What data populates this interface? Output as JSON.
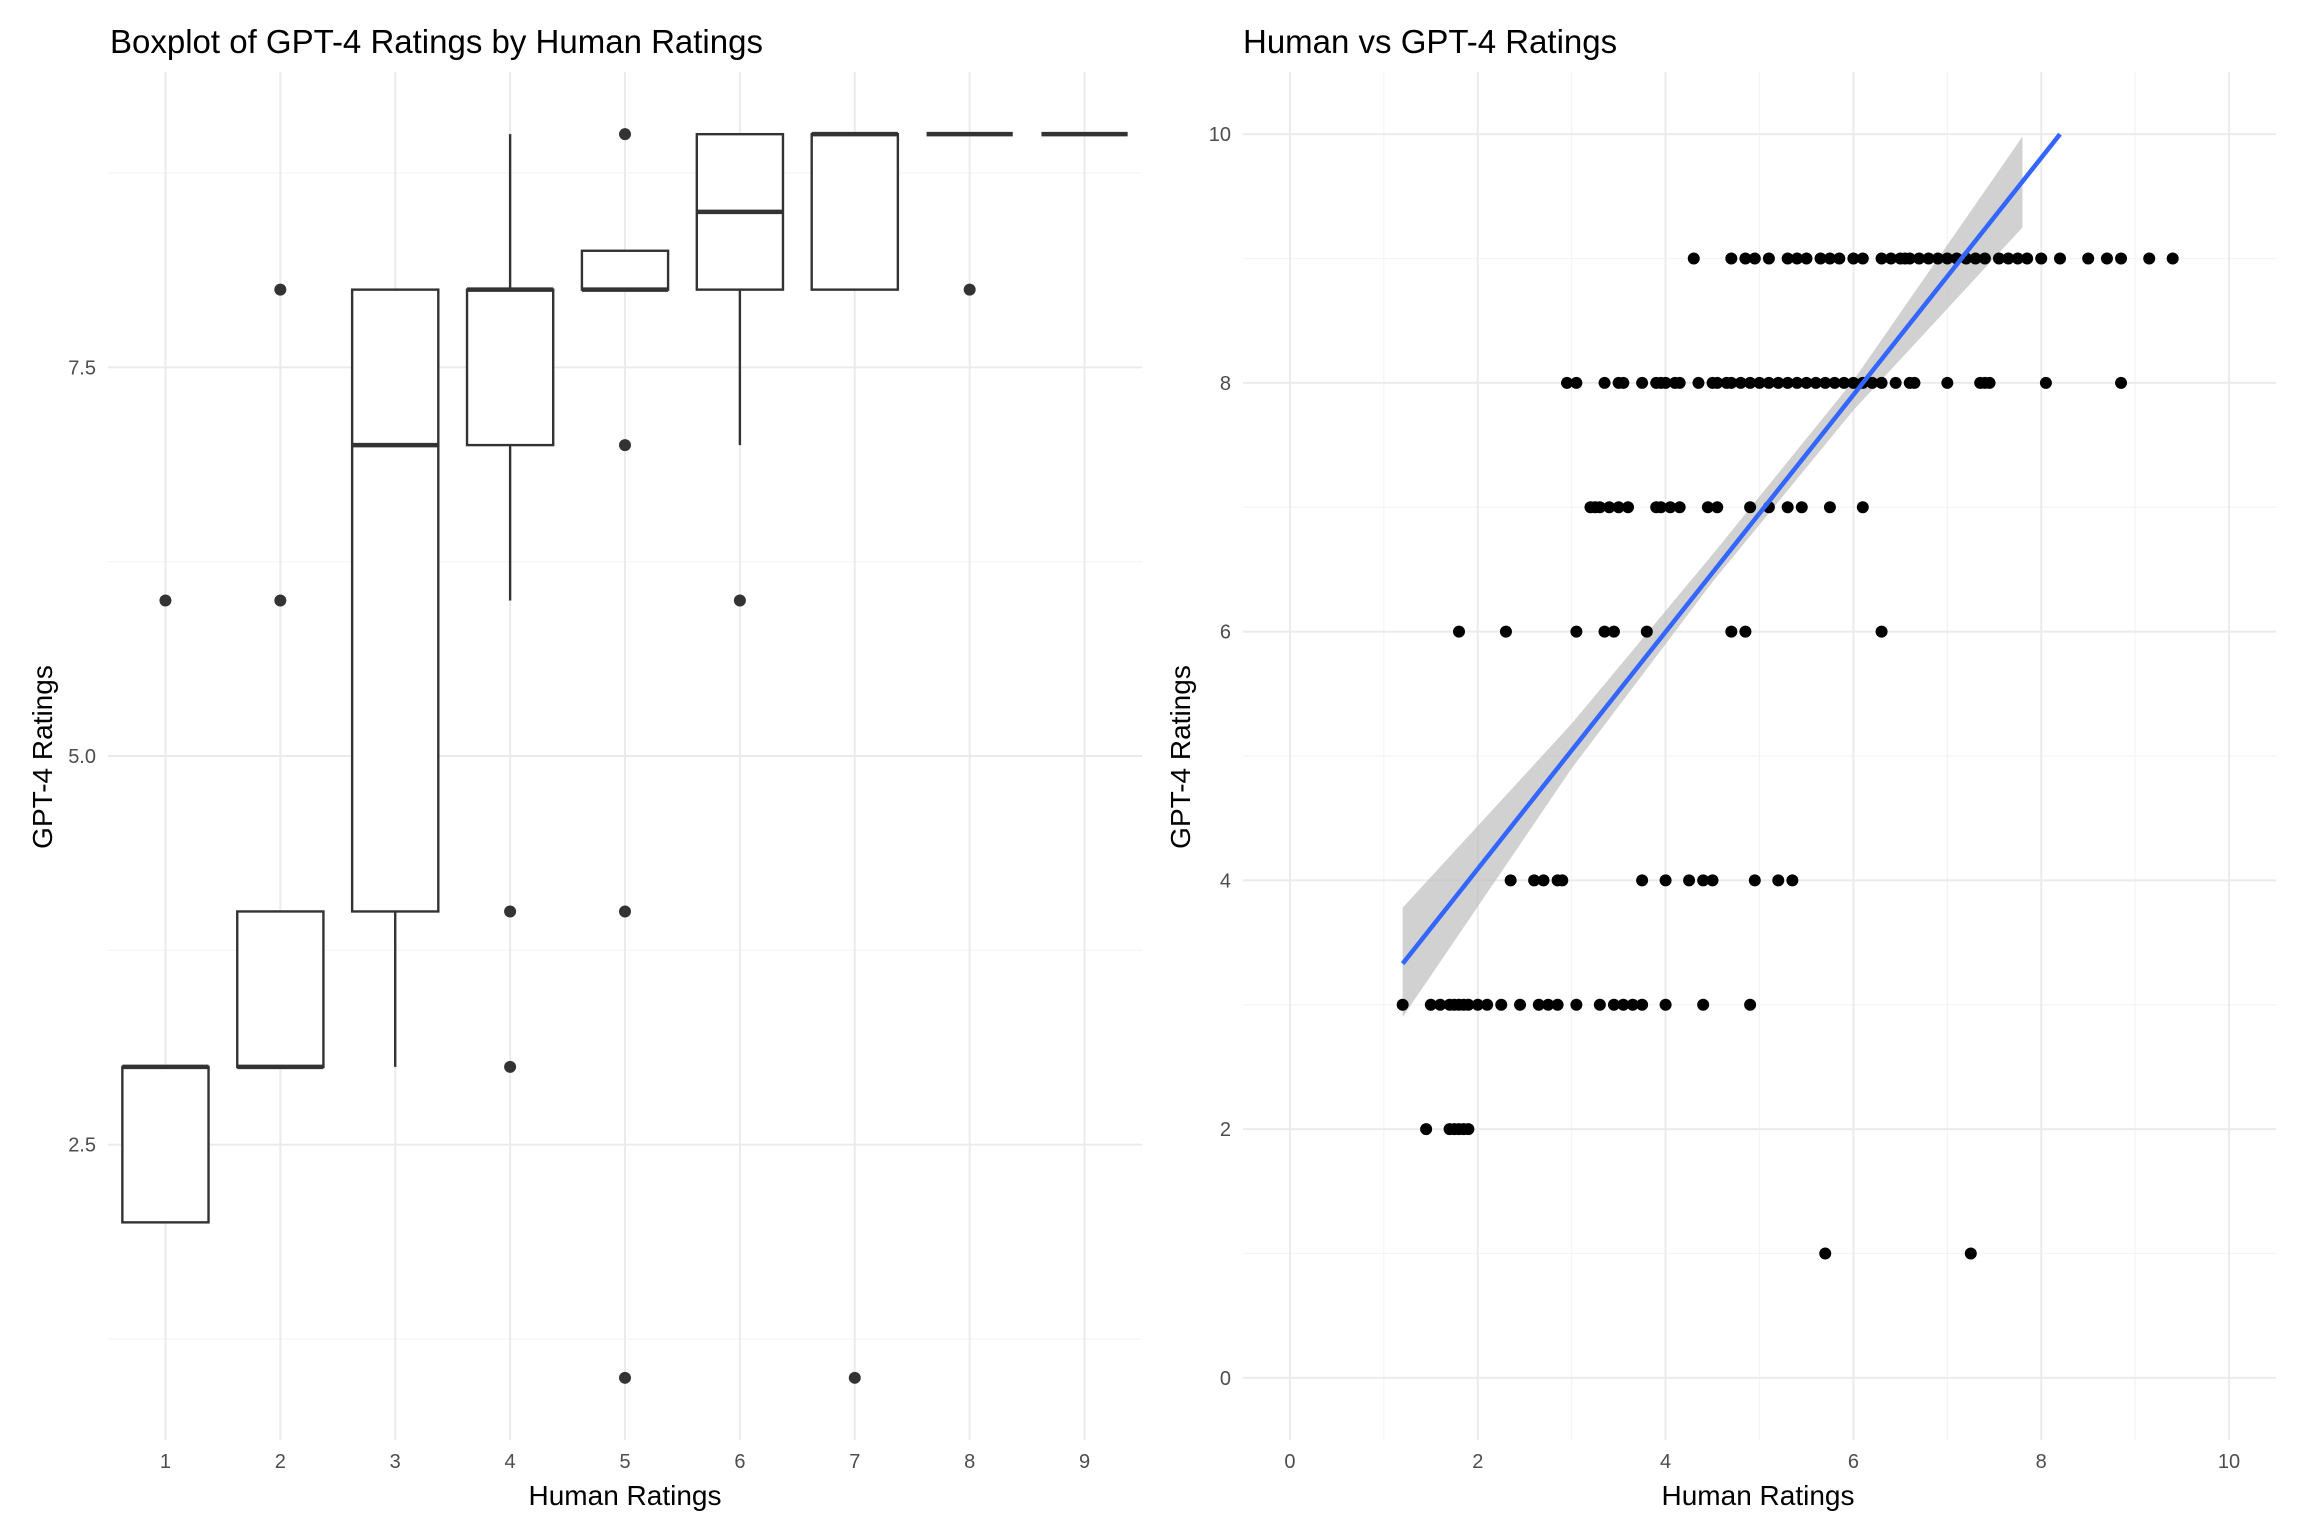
{
  "chart_data": [
    {
      "type": "boxplot",
      "title": "Boxplot of GPT-4 Ratings by Human Ratings",
      "xlabel": "Human Ratings",
      "ylabel": "GPT-4 Ratings",
      "categories": [
        "1",
        "2",
        "3",
        "4",
        "5",
        "6",
        "7",
        "8",
        "9"
      ],
      "yticks": [
        2.5,
        5.0,
        7.5
      ],
      "ytick_labels": [
        "2.5",
        "5.0",
        "7.5"
      ],
      "ylim": [
        0.6,
        9.4
      ],
      "grid": true,
      "boxes": [
        {
          "x": "1",
          "lower_whisker": 2,
          "q1": 2,
          "median": 3,
          "q3": 3,
          "upper_whisker": 3,
          "outliers": [
            6
          ]
        },
        {
          "x": "2",
          "lower_whisker": 3,
          "q1": 3,
          "median": 3,
          "q3": 4,
          "upper_whisker": 4,
          "outliers": [
            6,
            8
          ]
        },
        {
          "x": "3",
          "lower_whisker": 3,
          "q1": 4,
          "median": 7,
          "q3": 8,
          "upper_whisker": 8,
          "outliers": []
        },
        {
          "x": "4",
          "lower_whisker": 6,
          "q1": 7,
          "median": 8,
          "q3": 8,
          "upper_whisker": 9,
          "outliers": [
            4,
            3
          ]
        },
        {
          "x": "5",
          "lower_whisker": 8,
          "q1": 8,
          "median": 8,
          "q3": 8.25,
          "upper_whisker": 8.25,
          "outliers": [
            9,
            7,
            4,
            1
          ]
        },
        {
          "x": "6",
          "lower_whisker": 7,
          "q1": 8,
          "median": 8.5,
          "q3": 9,
          "upper_whisker": 9,
          "outliers": [
            6
          ]
        },
        {
          "x": "7",
          "lower_whisker": 8,
          "q1": 8,
          "median": 9,
          "q3": 9,
          "upper_whisker": 9,
          "outliers": [
            1
          ]
        },
        {
          "x": "8",
          "lower_whisker": 9,
          "q1": 9,
          "median": 9,
          "q3": 9,
          "upper_whisker": 9,
          "outliers": [
            8
          ]
        },
        {
          "x": "9",
          "lower_whisker": 9,
          "q1": 9,
          "median": 9,
          "q3": 9,
          "upper_whisker": 9,
          "outliers": []
        }
      ]
    },
    {
      "type": "scatter",
      "title": "Human vs GPT-4 Ratings",
      "xlabel": "Human Ratings",
      "ylabel": "GPT-4 Ratings",
      "xlim": [
        -0.5,
        10.5
      ],
      "ylim": [
        -0.5,
        10.5
      ],
      "xticks": [
        0,
        2,
        4,
        6,
        8,
        10
      ],
      "yticks": [
        0,
        2,
        4,
        6,
        8,
        10
      ],
      "grid": true,
      "point_color": "#000000",
      "trend": {
        "color": "#3366ff",
        "band_color": "#bdbdbd",
        "x1": 1.2,
        "y1": 3.33,
        "x2": 8.2,
        "y2": 10.0,
        "band_points": [
          {
            "x": 1.2,
            "lo": 2.9,
            "hi": 3.78
          },
          {
            "x": 3.0,
            "lo": 4.9,
            "hi": 5.26
          },
          {
            "x": 4.5,
            "lo": 6.4,
            "hi": 6.62
          },
          {
            "x": 6.0,
            "lo": 7.78,
            "hi": 8.02
          },
          {
            "x": 7.8,
            "lo": 9.25,
            "hi": 9.98
          }
        ]
      },
      "points": [
        [
          1.2,
          3
        ],
        [
          1.5,
          3
        ],
        [
          1.6,
          3
        ],
        [
          1.7,
          3
        ],
        [
          1.75,
          3
        ],
        [
          1.8,
          3
        ],
        [
          1.85,
          3
        ],
        [
          1.9,
          3
        ],
        [
          2.0,
          3
        ],
        [
          2.1,
          3
        ],
        [
          2.25,
          3
        ],
        [
          2.45,
          3
        ],
        [
          2.65,
          3
        ],
        [
          2.75,
          3
        ],
        [
          2.85,
          3
        ],
        [
          3.05,
          3
        ],
        [
          3.3,
          3
        ],
        [
          3.45,
          3
        ],
        [
          3.55,
          3
        ],
        [
          3.65,
          3
        ],
        [
          3.75,
          3
        ],
        [
          4.0,
          3
        ],
        [
          4.4,
          3
        ],
        [
          4.9,
          3
        ],
        [
          1.45,
          2
        ],
        [
          1.7,
          2
        ],
        [
          1.75,
          2
        ],
        [
          1.8,
          2
        ],
        [
          1.85,
          2
        ],
        [
          1.9,
          2
        ],
        [
          2.35,
          4
        ],
        [
          2.6,
          4
        ],
        [
          2.7,
          4
        ],
        [
          2.85,
          4
        ],
        [
          2.9,
          4
        ],
        [
          3.75,
          4
        ],
        [
          4.0,
          4
        ],
        [
          4.25,
          4
        ],
        [
          4.4,
          4
        ],
        [
          4.5,
          4
        ],
        [
          4.95,
          4
        ],
        [
          5.2,
          4
        ],
        [
          5.35,
          4
        ],
        [
          1.8,
          6
        ],
        [
          2.3,
          6
        ],
        [
          3.05,
          6
        ],
        [
          3.35,
          6
        ],
        [
          3.45,
          6
        ],
        [
          3.8,
          6
        ],
        [
          4.7,
          6
        ],
        [
          4.85,
          6
        ],
        [
          6.3,
          6
        ],
        [
          3.2,
          7
        ],
        [
          3.25,
          7
        ],
        [
          3.3,
          7
        ],
        [
          3.4,
          7
        ],
        [
          3.5,
          7
        ],
        [
          3.6,
          7
        ],
        [
          3.9,
          7
        ],
        [
          3.95,
          7
        ],
        [
          4.05,
          7
        ],
        [
          4.15,
          7
        ],
        [
          4.45,
          7
        ],
        [
          4.55,
          7
        ],
        [
          4.9,
          7
        ],
        [
          5.1,
          7
        ],
        [
          5.3,
          7
        ],
        [
          5.45,
          7
        ],
        [
          5.75,
          7
        ],
        [
          6.1,
          7
        ],
        [
          2.95,
          8
        ],
        [
          3.05,
          8
        ],
        [
          3.35,
          8
        ],
        [
          3.5,
          8
        ],
        [
          3.55,
          8
        ],
        [
          3.75,
          8
        ],
        [
          3.9,
          8
        ],
        [
          3.95,
          8
        ],
        [
          4.0,
          8
        ],
        [
          4.1,
          8
        ],
        [
          4.15,
          8
        ],
        [
          4.35,
          8
        ],
        [
          4.5,
          8
        ],
        [
          4.55,
          8
        ],
        [
          4.65,
          8
        ],
        [
          4.7,
          8
        ],
        [
          4.8,
          8
        ],
        [
          4.9,
          8
        ],
        [
          5.0,
          8
        ],
        [
          5.1,
          8
        ],
        [
          5.2,
          8
        ],
        [
          5.3,
          8
        ],
        [
          5.4,
          8
        ],
        [
          5.5,
          8
        ],
        [
          5.6,
          8
        ],
        [
          5.7,
          8
        ],
        [
          5.8,
          8
        ],
        [
          5.9,
          8
        ],
        [
          6.0,
          8
        ],
        [
          6.1,
          8
        ],
        [
          6.2,
          8
        ],
        [
          6.3,
          8
        ],
        [
          6.45,
          8
        ],
        [
          6.6,
          8
        ],
        [
          6.65,
          8
        ],
        [
          7.0,
          8
        ],
        [
          7.35,
          8
        ],
        [
          7.4,
          8
        ],
        [
          7.45,
          8
        ],
        [
          8.05,
          8
        ],
        [
          8.85,
          8
        ],
        [
          4.3,
          9
        ],
        [
          4.7,
          9
        ],
        [
          4.85,
          9
        ],
        [
          4.95,
          9
        ],
        [
          5.1,
          9
        ],
        [
          5.3,
          9
        ],
        [
          5.4,
          9
        ],
        [
          5.5,
          9
        ],
        [
          5.65,
          9
        ],
        [
          5.75,
          9
        ],
        [
          5.85,
          9
        ],
        [
          6.0,
          9
        ],
        [
          6.1,
          9
        ],
        [
          6.3,
          9
        ],
        [
          6.4,
          9
        ],
        [
          6.5,
          9
        ],
        [
          6.55,
          9
        ],
        [
          6.6,
          9
        ],
        [
          6.7,
          9
        ],
        [
          6.8,
          9
        ],
        [
          6.9,
          9
        ],
        [
          7.0,
          9
        ],
        [
          7.1,
          9
        ],
        [
          7.2,
          9
        ],
        [
          7.3,
          9
        ],
        [
          7.4,
          9
        ],
        [
          7.55,
          9
        ],
        [
          7.65,
          9
        ],
        [
          7.75,
          9
        ],
        [
          7.85,
          9
        ],
        [
          8.0,
          9
        ],
        [
          8.2,
          9
        ],
        [
          8.5,
          9
        ],
        [
          8.7,
          9
        ],
        [
          8.85,
          9
        ],
        [
          9.15,
          9
        ],
        [
          9.4,
          9
        ],
        [
          5.7,
          1
        ],
        [
          7.25,
          1
        ]
      ]
    }
  ]
}
